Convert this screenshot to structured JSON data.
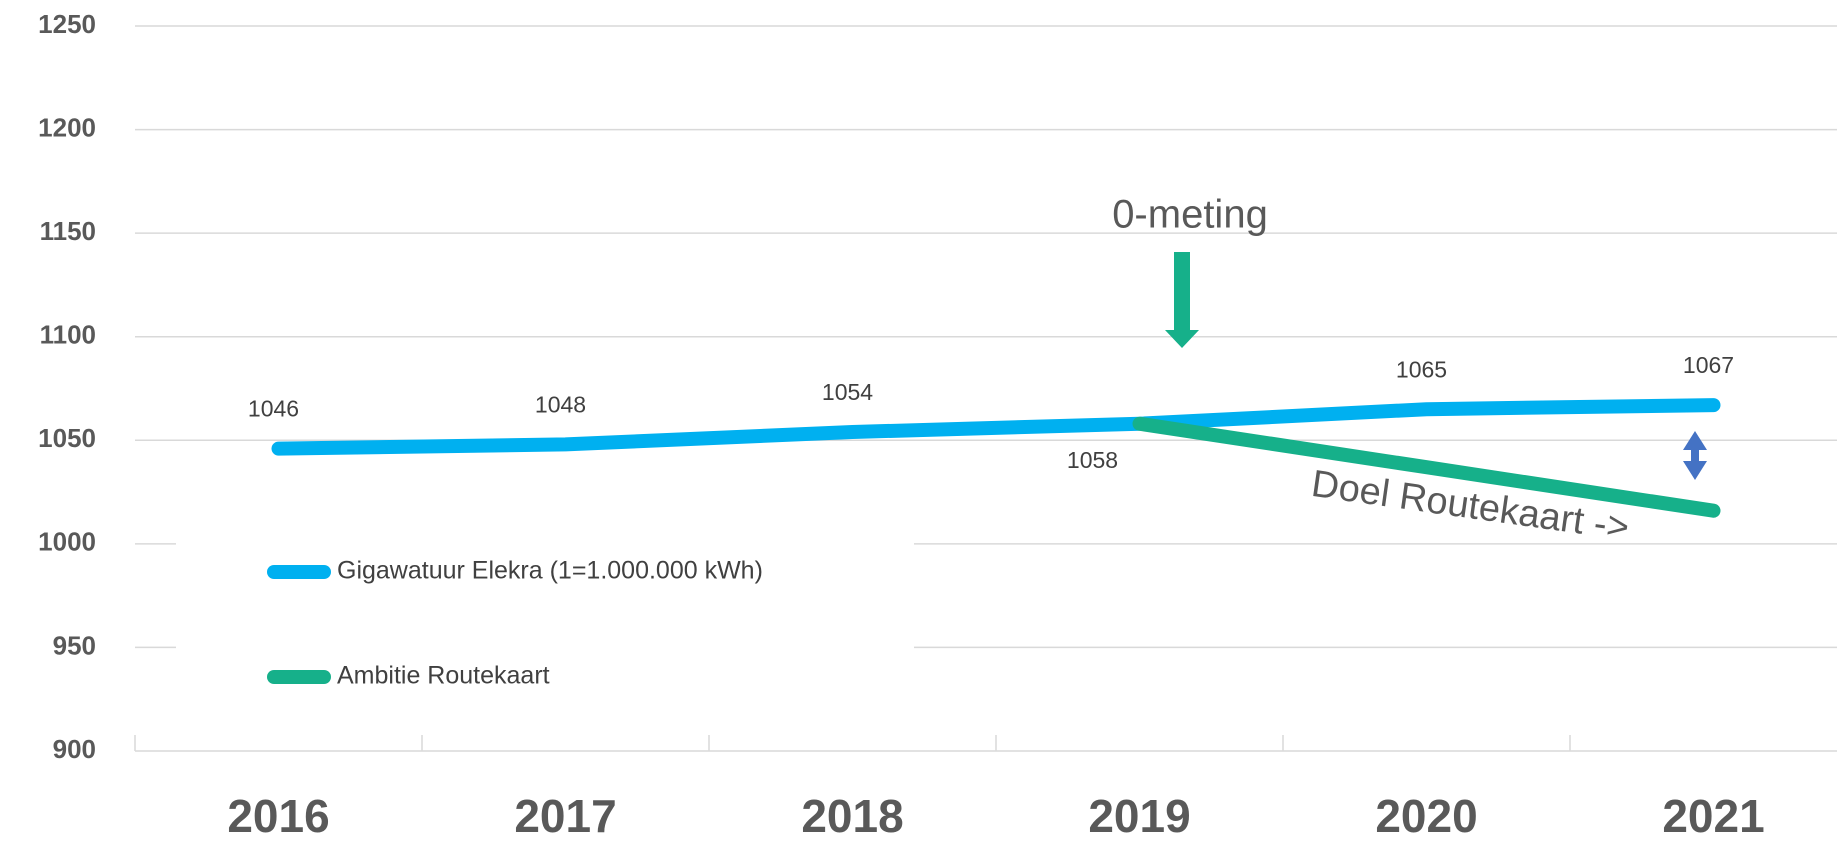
{
  "chart_data": {
    "type": "line",
    "categories": [
      "2016",
      "2017",
      "2018",
      "2019",
      "2020",
      "2021"
    ],
    "series": [
      {
        "name": "Gigawatuur Elekra (1=1.000.000 kWh)",
        "color": "#00b0f0",
        "values": [
          1046,
          1048,
          1054,
          1058,
          1065,
          1067
        ]
      },
      {
        "name": "Ambitie Routekaart",
        "color": "#16b08a",
        "values": [
          null,
          null,
          null,
          1058,
          1037,
          1016
        ]
      }
    ],
    "ylim": [
      900,
      1250
    ],
    "yticks": [
      900,
      950,
      1000,
      1050,
      1100,
      1150,
      1200,
      1250
    ],
    "grid": true,
    "annotations": [
      "0-meting",
      "Doel Routekaart ->"
    ]
  }
}
